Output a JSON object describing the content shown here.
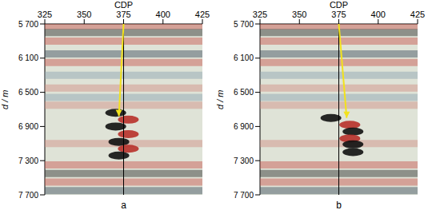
{
  "chart_data": [
    {
      "type": "seismic_section",
      "title": "a",
      "x_label": "CDP",
      "y_label": "d / m",
      "xlim": [
        325,
        425
      ],
      "xticks": [
        325,
        350,
        375,
        400,
        425
      ],
      "ylim": [
        5700,
        7700
      ],
      "yticks": [
        {
          "value": 5700,
          "label": "5 700"
        },
        {
          "value": 6100,
          "label": "6 100"
        },
        {
          "value": 6500,
          "label": "6 500"
        },
        {
          "value": 6900,
          "label": "6 900"
        },
        {
          "value": 7300,
          "label": "7 300"
        },
        {
          "value": 7700,
          "label": "7 700"
        }
      ],
      "trace_x": 375,
      "arrow": {
        "x": [
          375,
          372
        ],
        "y": [
          5700,
          6780
        ],
        "color": "#f2e21c"
      },
      "reflectors": [
        {
          "depth": 5720,
          "color": "#c8504a"
        },
        {
          "depth": 5800,
          "color": "#2a2a2a"
        },
        {
          "depth": 5900,
          "color": "#c8504a"
        },
        {
          "depth": 6050,
          "color": "#3a4a5a"
        },
        {
          "depth": 6150,
          "color": "#c8504a"
        },
        {
          "depth": 6300,
          "color": "#8aa0b0"
        },
        {
          "depth": 6450,
          "color": "#d08a80"
        },
        {
          "depth": 6560,
          "color": "#8aa0b0"
        },
        {
          "depth": 6650,
          "color": "#d08a80"
        },
        {
          "depth": 7100,
          "color": "#d08a80"
        },
        {
          "depth": 7350,
          "color": "#c8504a"
        },
        {
          "depth": 7450,
          "color": "#2a2a2a"
        },
        {
          "depth": 7550,
          "color": "#c8504a"
        },
        {
          "depth": 7650,
          "color": "#3a4a5a"
        }
      ],
      "anomaly": [
        {
          "x": 370,
          "depth": 6740,
          "color": "#111111"
        },
        {
          "x": 378,
          "depth": 6820,
          "color": "#b8302a"
        },
        {
          "x": 370,
          "depth": 6900,
          "color": "#111111"
        },
        {
          "x": 378,
          "depth": 6990,
          "color": "#b8302a"
        },
        {
          "x": 372,
          "depth": 7080,
          "color": "#111111"
        },
        {
          "x": 378,
          "depth": 7160,
          "color": "#b8302a"
        },
        {
          "x": 372,
          "depth": 7240,
          "color": "#111111"
        }
      ]
    },
    {
      "type": "seismic_section",
      "title": "b",
      "x_label": "CDP",
      "y_label": "d / m",
      "xlim": [
        325,
        425
      ],
      "xticks": [
        325,
        350,
        375,
        400,
        425
      ],
      "ylim": [
        5700,
        7700
      ],
      "yticks": [
        {
          "value": 5700,
          "label": "5 700"
        },
        {
          "value": 6100,
          "label": "6 100"
        },
        {
          "value": 6500,
          "label": "6 500"
        },
        {
          "value": 6900,
          "label": "6 900"
        },
        {
          "value": 7300,
          "label": "7 300"
        },
        {
          "value": 7700,
          "label": "7 700"
        }
      ],
      "trace_x": 375,
      "arrow": {
        "x": [
          375,
          380
        ],
        "y": [
          5700,
          6800
        ],
        "color": "#f2e21c"
      },
      "reflectors": [
        {
          "depth": 5720,
          "color": "#c8504a"
        },
        {
          "depth": 5800,
          "color": "#2a2a2a"
        },
        {
          "depth": 5900,
          "color": "#c8504a"
        },
        {
          "depth": 6050,
          "color": "#3a4a5a"
        },
        {
          "depth": 6150,
          "color": "#c8504a"
        },
        {
          "depth": 6300,
          "color": "#8aa0b0"
        },
        {
          "depth": 6450,
          "color": "#d08a80"
        },
        {
          "depth": 6560,
          "color": "#8aa0b0"
        },
        {
          "depth": 6650,
          "color": "#d08a80"
        },
        {
          "depth": 7100,
          "color": "#d08a80"
        },
        {
          "depth": 7350,
          "color": "#c8504a"
        },
        {
          "depth": 7450,
          "color": "#2a2a2a"
        },
        {
          "depth": 7550,
          "color": "#c8504a"
        },
        {
          "depth": 7650,
          "color": "#3a4a5a"
        }
      ],
      "anomaly": [
        {
          "x": 370,
          "depth": 6800,
          "color": "#111111"
        },
        {
          "x": 382,
          "depth": 6880,
          "color": "#b8302a"
        },
        {
          "x": 384,
          "depth": 6960,
          "color": "#111111"
        },
        {
          "x": 382,
          "depth": 7040,
          "color": "#b8302a"
        },
        {
          "x": 384,
          "depth": 7110,
          "color": "#111111"
        },
        {
          "x": 384,
          "depth": 7200,
          "color": "#111111"
        }
      ]
    }
  ]
}
